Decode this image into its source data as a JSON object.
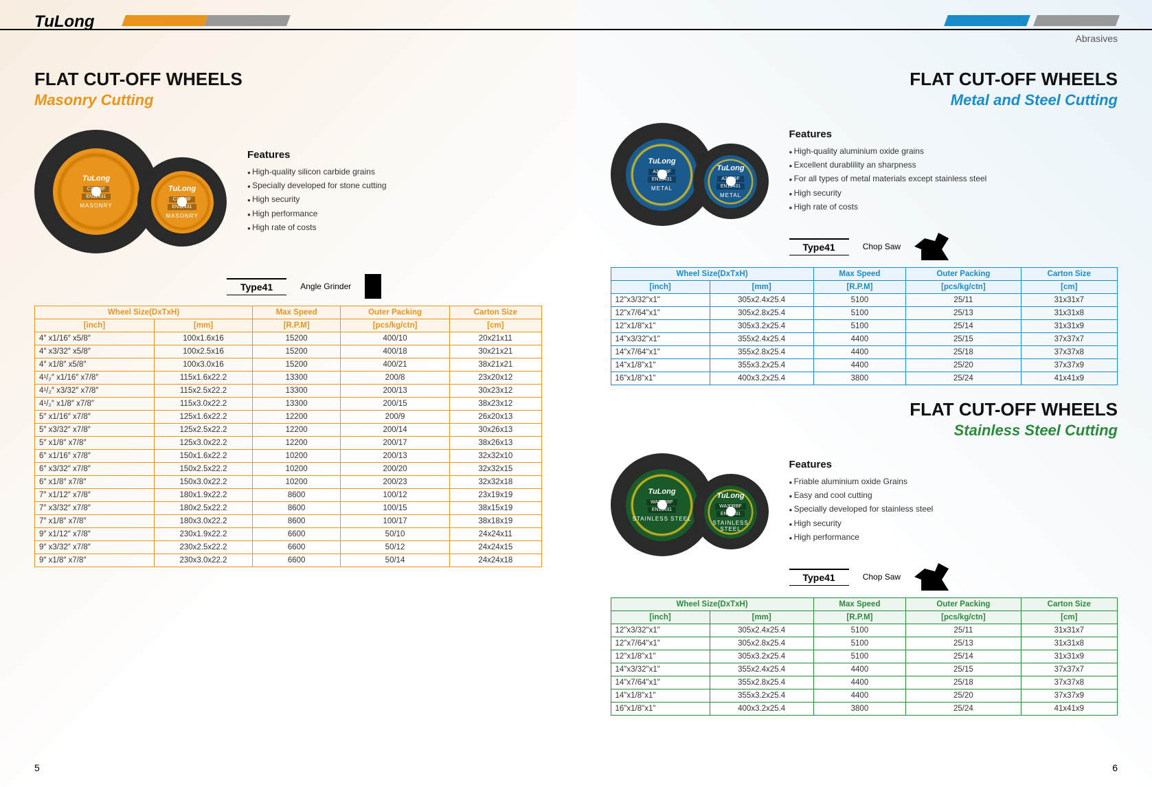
{
  "brand": "TuLong",
  "category": "Abrasives",
  "pageLeft": "5",
  "pageRight": "6",
  "typeLabel": "Type41",
  "colors": {
    "orange": "#e8941d",
    "blue": "#1a8cc9",
    "green": "#2a8a3a"
  },
  "masonry": {
    "title": "FLAT CUT-OFF WHEELS",
    "subtitle": "Masonry Cutting",
    "discStandard": "EN12431",
    "discCode": "C30RBF",
    "discType": "MASONRY",
    "featuresHeading": "Features",
    "features": [
      "High-quality silicon carbide grains",
      "Specially developed for stone cutting",
      "High security",
      "High performance",
      "High rate of costs"
    ],
    "toolLabel": "Angle Grinder",
    "columns": [
      {
        "label": "Wheel Size(DxTxH)",
        "span": 2
      },
      {
        "label": "Max Speed",
        "span": 1
      },
      {
        "label": "Outer Packing",
        "span": 1
      },
      {
        "label": "Carton Size",
        "span": 1
      }
    ],
    "subColumns": [
      "[inch]",
      "[mm]",
      "[R.P.M]",
      "[pcs/kg/ctn]",
      "[cm]"
    ],
    "rows": [
      [
        "4″ x1/16″ x5/8″",
        "100x1.6x16",
        "15200",
        "400/10",
        "20x21x11"
      ],
      [
        "4″ x3/32″ x5/8″",
        "100x2.5x16",
        "15200",
        "400/18",
        "30x21x21"
      ],
      [
        "4″ x1/8″ x5/8″",
        "100x3.0x16",
        "15200",
        "400/21",
        "38x21x21"
      ],
      [
        "4¹/₂″ x1/16″ x7/8″",
        "115x1.6x22.2",
        "13300",
        "200/8",
        "23x20x12"
      ],
      [
        "4¹/₂″ x3/32″ x7/8″",
        "115x2.5x22.2",
        "13300",
        "200/13",
        "30x23x12"
      ],
      [
        "4¹/₂″ x1/8″ x7/8″",
        "115x3.0x22.2",
        "13300",
        "200/15",
        "38x23x12"
      ],
      [
        "5″ x1/16″ x7/8″",
        "125x1.6x22.2",
        "12200",
        "200/9",
        "26x20x13"
      ],
      [
        "5″ x3/32″ x7/8″",
        "125x2.5x22.2",
        "12200",
        "200/14",
        "30x26x13"
      ],
      [
        "5″ x1/8″ x7/8″",
        "125x3.0x22.2",
        "12200",
        "200/17",
        "38x26x13"
      ],
      [
        "6″ x1/16″ x7/8″",
        "150x1.6x22.2",
        "10200",
        "200/13",
        "32x32x10"
      ],
      [
        "6″ x3/32″ x7/8″",
        "150x2.5x22.2",
        "10200",
        "200/20",
        "32x32x15"
      ],
      [
        "6″ x1/8″ x7/8″",
        "150x3.0x22.2",
        "10200",
        "200/23",
        "32x32x18"
      ],
      [
        "7″ x1/12″ x7/8″",
        "180x1.9x22.2",
        "8600",
        "100/12",
        "23x19x19"
      ],
      [
        "7″ x3/32″ x7/8″",
        "180x2.5x22.2",
        "8600",
        "100/15",
        "38x15x19"
      ],
      [
        "7″ x1/8″ x7/8″",
        "180x3.0x22.2",
        "8600",
        "100/17",
        "38x18x19"
      ],
      [
        "9″ x1/12″ x7/8″",
        "230x1.9x22.2",
        "6600",
        "50/10",
        "24x24x11"
      ],
      [
        "9″ x3/32″ x7/8″",
        "230x2.5x22.2",
        "6600",
        "50/12",
        "24x24x15"
      ],
      [
        "9″ x1/8″ x7/8″",
        "230x3.0x22.2",
        "6600",
        "50/14",
        "24x24x18"
      ]
    ]
  },
  "metal": {
    "title": "FLAT CUT-OFF WHEELS",
    "subtitle": "Metal and Steel Cutting",
    "discStandard": "EN13431",
    "discCode": "A30RBF",
    "discType": "METAL",
    "featuresHeading": "Features",
    "features": [
      "High-quality aluminium oxide grains",
      "Excellent durablility an sharpness",
      "For all types of metal materials except stainless steel",
      "High security",
      "High rate of costs"
    ],
    "toolLabel": "Chop Saw",
    "rows": [
      [
        "12\"x3/32\"x1\"",
        "305x2.4x25.4",
        "5100",
        "25/11",
        "31x31x7"
      ],
      [
        "12\"x7/64\"x1\"",
        "305x2.8x25.4",
        "5100",
        "25/13",
        "31x31x8"
      ],
      [
        "12\"x1/8\"x1\"",
        "305x3.2x25.4",
        "5100",
        "25/14",
        "31x31x9"
      ],
      [
        "14\"x3/32\"x1\"",
        "355x2.4x25.4",
        "4400",
        "25/15",
        "37x37x7"
      ],
      [
        "14\"x7/64\"x1\"",
        "355x2.8x25.4",
        "4400",
        "25/18",
        "37x37x8"
      ],
      [
        "14\"x1/8\"x1\"",
        "355x3.2x25.4",
        "4400",
        "25/20",
        "37x37x9"
      ],
      [
        "16\"x1/8\"x1\"",
        "400x3.2x25.4",
        "3800",
        "25/24",
        "41x41x9"
      ]
    ]
  },
  "stainless": {
    "title": "FLAT CUT-OFF WHEELS",
    "subtitle": "Stainless Steel Cutting",
    "discStandard": "EN13431",
    "discCode": "WA30RBF",
    "discType": "STAINLESS STEEL",
    "featuresHeading": "Features",
    "features": [
      "Friable aluminium oxide Grains",
      "Easy and cool cutting",
      "Specially developed for stainless steel",
      "High security",
      "High performance"
    ],
    "toolLabel": "Chop Saw",
    "rows": [
      [
        "12\"x3/32\"x1\"",
        "305x2.4x25.4",
        "5100",
        "25/11",
        "31x31x7"
      ],
      [
        "12\"x7/64\"x1\"",
        "305x2.8x25.4",
        "5100",
        "25/13",
        "31x31x8"
      ],
      [
        "12\"x1/8\"x1\"",
        "305x3.2x25.4",
        "5100",
        "25/14",
        "31x31x9"
      ],
      [
        "14\"x3/32\"x1\"",
        "355x2.4x25.4",
        "4400",
        "25/15",
        "37x37x7"
      ],
      [
        "14\"x7/64\"x1\"",
        "355x2.8x25.4",
        "4400",
        "25/18",
        "37x37x8"
      ],
      [
        "14\"x1/8\"x1\"",
        "355x3.2x25.4",
        "4400",
        "25/20",
        "37x37x9"
      ],
      [
        "16\"x1/8\"x1\"",
        "400x3.2x25.4",
        "3800",
        "25/24",
        "41x41x9"
      ]
    ]
  }
}
